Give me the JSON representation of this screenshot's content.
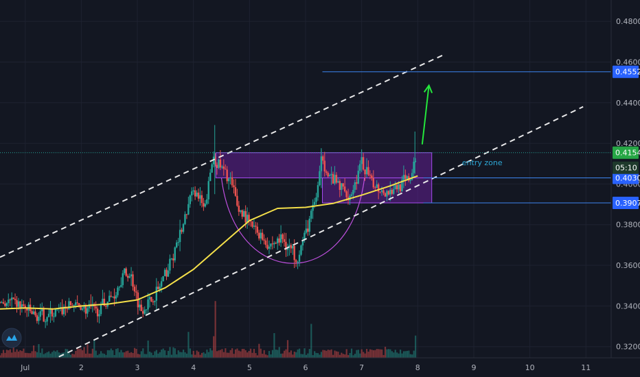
{
  "colors": {
    "background": "#131722",
    "grid": "#1e2230",
    "up_candle": "#26a69a",
    "down_candle": "#ef5350",
    "ma_line": "#f5e04a",
    "trend_line": "#e9e9ea",
    "zone_fill": "#7a22b8",
    "zone_border": "#a64cf0",
    "cup_curve": "#c050e0",
    "level_line": "#3d86f2",
    "arrow": "#24e83c",
    "last_price_tag": "#26a645",
    "countdown_tag": "#1f3a2c",
    "level_tag": "#2962ff"
  },
  "chart_data": {
    "type": "candlestick",
    "x_axis": {
      "unit": "day",
      "range": [
        0.55,
        11.45
      ],
      "ticks": [
        {
          "x": 1,
          "label": "Jul"
        },
        {
          "x": 2,
          "label": "2"
        },
        {
          "x": 3,
          "label": "3"
        },
        {
          "x": 4,
          "label": "4"
        },
        {
          "x": 5,
          "label": "5"
        },
        {
          "x": 6,
          "label": "6"
        },
        {
          "x": 7,
          "label": "7"
        },
        {
          "x": 8,
          "label": "8"
        },
        {
          "x": 9,
          "label": "9"
        },
        {
          "x": 10,
          "label": "10"
        },
        {
          "x": 11,
          "label": "11"
        }
      ]
    },
    "y_axis": {
      "side": "right",
      "range": [
        0.3145,
        0.4905
      ],
      "ticks": [
        "0.3200",
        "0.3400",
        "0.3600",
        "0.3800",
        "0.4000",
        "0.4200",
        "0.4400",
        "0.4600",
        "0.4800"
      ]
    },
    "grid": true,
    "price_path": [
      [
        0.55,
        0.342
      ],
      [
        0.9,
        0.341
      ],
      [
        1.2,
        0.3345
      ],
      [
        1.5,
        0.336
      ],
      [
        1.85,
        0.341
      ],
      [
        2.25,
        0.337
      ],
      [
        2.6,
        0.346
      ],
      [
        2.75,
        0.356
      ],
      [
        2.9,
        0.354
      ],
      [
        3.05,
        0.338
      ],
      [
        3.3,
        0.344
      ],
      [
        3.55,
        0.358
      ],
      [
        3.8,
        0.378
      ],
      [
        4.0,
        0.398
      ],
      [
        4.2,
        0.387
      ],
      [
        4.35,
        0.414
      ],
      [
        4.5,
        0.408
      ],
      [
        4.65,
        0.402
      ],
      [
        4.8,
        0.388
      ],
      [
        5.05,
        0.379
      ],
      [
        5.35,
        0.37
      ],
      [
        5.6,
        0.373
      ],
      [
        5.85,
        0.364
      ],
      [
        6.0,
        0.376
      ],
      [
        6.2,
        0.395
      ],
      [
        6.3,
        0.414
      ],
      [
        6.4,
        0.404
      ],
      [
        6.6,
        0.399
      ],
      [
        6.8,
        0.394
      ],
      [
        7.0,
        0.41
      ],
      [
        7.2,
        0.4
      ],
      [
        7.45,
        0.396
      ],
      [
        7.7,
        0.4
      ],
      [
        7.88,
        0.403
      ],
      [
        7.98,
        0.4154
      ]
    ],
    "volume": {
      "scale_max": 1,
      "spikes": [
        [
          4.4,
          0.92
        ],
        [
          6.1,
          0.55
        ],
        [
          5.45,
          0.4
        ],
        [
          3.9,
          0.42
        ],
        [
          4.35,
          0.35
        ],
        [
          7.95,
          0.36
        ],
        [
          3.2,
          0.28
        ],
        [
          2.1,
          0.22
        ]
      ]
    },
    "moving_average": {
      "points": [
        [
          0.55,
          0.3385
        ],
        [
          1.0,
          0.339
        ],
        [
          1.5,
          0.3385
        ],
        [
          2.0,
          0.34
        ],
        [
          2.5,
          0.341
        ],
        [
          3.0,
          0.343
        ],
        [
          3.5,
          0.349
        ],
        [
          4.0,
          0.358
        ],
        [
          4.5,
          0.37
        ],
        [
          5.0,
          0.382
        ],
        [
          5.5,
          0.388
        ],
        [
          6.0,
          0.3885
        ],
        [
          6.5,
          0.3905
        ],
        [
          7.0,
          0.3945
        ],
        [
          7.5,
          0.399
        ],
        [
          8.0,
          0.404
        ]
      ]
    },
    "trend_lines": [
      {
        "from": [
          0.55,
          0.364
        ],
        "to": [
          8.5,
          0.464
        ]
      },
      {
        "from": [
          1.6,
          0.315
        ],
        "to": [
          10.95,
          0.438
        ]
      }
    ],
    "zones": [
      {
        "x0": 4.4,
        "x1": 8.25,
        "y0": 0.403,
        "y1": 0.4154
      },
      {
        "x0": 6.3,
        "x1": 8.25,
        "y0": 0.3907,
        "y1": 0.403
      }
    ],
    "cup_curve": {
      "x0": 4.5,
      "x1": 7.05,
      "y_top": 0.403,
      "y_bottom": 0.3655
    },
    "horizontal_levels": [
      {
        "y": 0.4552,
        "x_start": 6.3,
        "label": "0.4552"
      },
      {
        "y": 0.403,
        "x_start": 8.1,
        "label": "0.4030"
      },
      {
        "y": 0.3907,
        "x_start": 8.1,
        "label": "0.3907"
      }
    ],
    "last_price": {
      "y": 0.4154,
      "label": "0.4154",
      "countdown": "05:10"
    },
    "arrow": {
      "from": [
        8.08,
        0.4195
      ],
      "to": [
        8.2,
        0.4485
      ]
    },
    "annotations": [
      {
        "x": 9.15,
        "y": 0.4093,
        "text": "entry zone"
      }
    ]
  }
}
